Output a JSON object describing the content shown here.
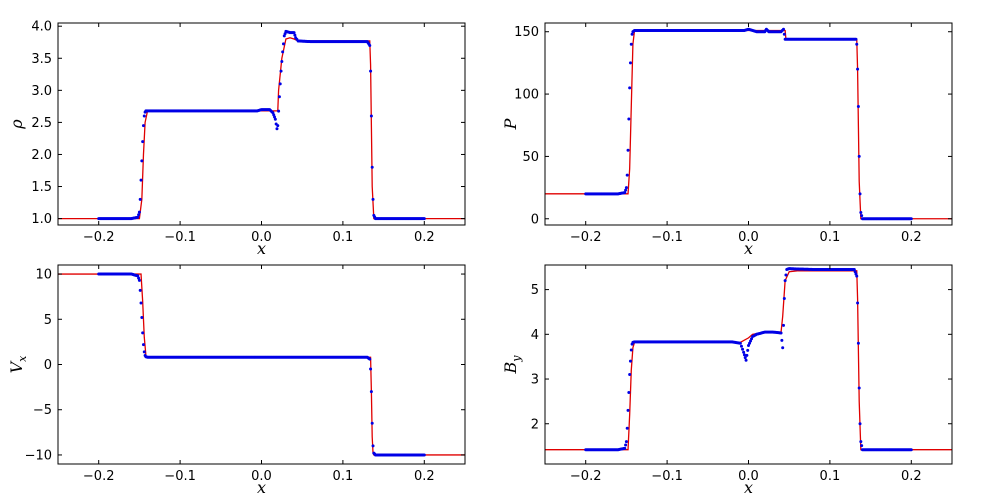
{
  "colors": {
    "analytic": "#e00000",
    "numerical": "#0000e6"
  },
  "chart_data": [
    {
      "type": "line",
      "ylabel_symbol": "ρ",
      "ylabel_sub": "",
      "xlabel": "x",
      "xlim": [
        -0.25,
        0.25
      ],
      "ylim": [
        0.9,
        4.05
      ],
      "xticks": [
        "−0.2",
        "−0.1",
        "0.0",
        "0.1",
        "0.2"
      ],
      "xtick_values": [
        -0.2,
        -0.1,
        0.0,
        0.1,
        0.2
      ],
      "yticks": [
        "1.0",
        "1.5",
        "2.0",
        "2.5",
        "3.0",
        "3.5",
        "4.0"
      ],
      "ytick_values": [
        1.0,
        1.5,
        2.0,
        2.5,
        3.0,
        3.5,
        4.0
      ],
      "series": [
        {
          "style": "line",
          "x": [
            -0.25,
            -0.15,
            -0.147,
            -0.145,
            -0.143,
            -0.14,
            0.0,
            0.02,
            0.021,
            0.025,
            0.03,
            0.035,
            0.04,
            0.045,
            0.05,
            0.1,
            0.133,
            0.134,
            0.136,
            0.138,
            0.25
          ],
          "y": [
            1.0,
            1.0,
            1.3,
            2.0,
            2.5,
            2.68,
            2.68,
            2.68,
            3.0,
            3.5,
            3.8,
            3.82,
            3.8,
            3.77,
            3.77,
            3.77,
            3.77,
            3.4,
            1.5,
            1.0,
            1.0
          ]
        },
        {
          "style": "points",
          "x": [
            -0.2,
            -0.18,
            -0.16,
            -0.152,
            -0.15,
            -0.149,
            -0.148,
            -0.147,
            -0.146,
            -0.145,
            -0.144,
            -0.143,
            -0.142,
            -0.14,
            -0.13,
            -0.12,
            -0.1,
            -0.08,
            -0.06,
            -0.04,
            -0.02,
            -0.005,
            0.0,
            0.005,
            0.01,
            0.014,
            0.017,
            0.019,
            0.02,
            0.022,
            0.024,
            0.026,
            0.028,
            0.03,
            0.035,
            0.04,
            0.042,
            0.045,
            0.06,
            0.08,
            0.1,
            0.12,
            0.13,
            0.133,
            0.134,
            0.135,
            0.136,
            0.137,
            0.138,
            0.14,
            0.16,
            0.18,
            0.2
          ],
          "y": [
            1.0,
            1.0,
            1.0,
            1.02,
            1.1,
            1.3,
            1.6,
            1.9,
            2.2,
            2.45,
            2.6,
            2.66,
            2.68,
            2.68,
            2.68,
            2.68,
            2.68,
            2.68,
            2.68,
            2.68,
            2.68,
            2.68,
            2.7,
            2.7,
            2.7,
            2.65,
            2.55,
            2.4,
            2.45,
            2.9,
            3.3,
            3.6,
            3.85,
            3.92,
            3.9,
            3.9,
            3.82,
            3.77,
            3.76,
            3.76,
            3.76,
            3.76,
            3.76,
            3.7,
            3.3,
            2.6,
            1.8,
            1.3,
            1.05,
            1.0,
            1.0,
            1.0,
            1.0
          ]
        }
      ]
    },
    {
      "type": "line",
      "ylabel_symbol": "P",
      "ylabel_sub": "",
      "xlabel": "x",
      "xlim": [
        -0.25,
        0.25
      ],
      "ylim": [
        -5,
        157
      ],
      "xticks": [
        "−0.2",
        "−0.1",
        "0.0",
        "0.1",
        "0.2"
      ],
      "xtick_values": [
        -0.2,
        -0.1,
        0.0,
        0.1,
        0.2
      ],
      "yticks": [
        "0",
        "50",
        "100",
        "150"
      ],
      "ytick_values": [
        0,
        50,
        100,
        150
      ],
      "series": [
        {
          "style": "line",
          "x": [
            -0.25,
            -0.148,
            -0.146,
            -0.144,
            -0.142,
            -0.14,
            0.0,
            0.03,
            0.04,
            0.045,
            0.046,
            0.1,
            0.133,
            0.134,
            0.136,
            0.138,
            0.25
          ],
          "y": [
            20,
            20,
            40,
            90,
            140,
            151,
            151,
            151,
            151,
            151,
            144,
            144,
            144,
            120,
            30,
            0,
            0
          ]
        },
        {
          "style": "points",
          "x": [
            -0.2,
            -0.18,
            -0.16,
            -0.152,
            -0.15,
            -0.149,
            -0.148,
            -0.147,
            -0.146,
            -0.145,
            -0.144,
            -0.143,
            -0.142,
            -0.14,
            -0.12,
            -0.1,
            -0.08,
            -0.06,
            -0.04,
            -0.02,
            -0.005,
            0.0,
            0.005,
            0.01,
            0.02,
            0.022,
            0.025,
            0.03,
            0.04,
            0.043,
            0.045,
            0.06,
            0.08,
            0.1,
            0.12,
            0.132,
            0.133,
            0.134,
            0.135,
            0.136,
            0.137,
            0.138,
            0.14,
            0.16,
            0.18,
            0.2
          ],
          "y": [
            20,
            20,
            20,
            21,
            25,
            35,
            55,
            80,
            105,
            125,
            140,
            148,
            150,
            151,
            151,
            151,
            151,
            151,
            151,
            151,
            151,
            152,
            151,
            150,
            150,
            152,
            150,
            150,
            150,
            152,
            144,
            144,
            144,
            144,
            144,
            144,
            140,
            120,
            90,
            50,
            20,
            5,
            0,
            0,
            0,
            0
          ]
        }
      ]
    },
    {
      "type": "line",
      "ylabel_symbol": "V",
      "ylabel_sub": "x",
      "xlabel": "x",
      "xlim": [
        -0.25,
        0.25
      ],
      "ylim": [
        -11,
        11
      ],
      "xticks": [
        "−0.2",
        "−0.1",
        "0.0",
        "0.1",
        "0.2"
      ],
      "xtick_values": [
        -0.2,
        -0.1,
        0.0,
        0.1,
        0.2
      ],
      "yticks": [
        "10",
        "5",
        "0",
        "−5",
        "−10"
      ],
      "ytick_values": [
        10,
        5,
        0,
        -5,
        -10
      ],
      "series": [
        {
          "style": "line",
          "x": [
            -0.25,
            -0.148,
            -0.146,
            -0.144,
            -0.142,
            -0.14,
            0.0,
            0.1,
            0.134,
            0.135,
            0.136,
            0.137,
            0.138,
            0.25
          ],
          "y": [
            10,
            10,
            7,
            3,
            1,
            0.8,
            0.8,
            0.8,
            0.8,
            -3,
            -8,
            -9.8,
            -10,
            -10
          ]
        },
        {
          "style": "points",
          "x": [
            -0.2,
            -0.18,
            -0.16,
            -0.152,
            -0.15,
            -0.149,
            -0.148,
            -0.147,
            -0.146,
            -0.145,
            -0.144,
            -0.143,
            -0.142,
            -0.14,
            -0.12,
            -0.1,
            -0.08,
            -0.06,
            -0.04,
            -0.02,
            0.0,
            0.02,
            0.04,
            0.06,
            0.08,
            0.1,
            0.12,
            0.13,
            0.133,
            0.134,
            0.135,
            0.136,
            0.137,
            0.138,
            0.14,
            0.16,
            0.18,
            0.2
          ],
          "y": [
            10,
            10,
            10,
            9.8,
            9.3,
            8.2,
            6.8,
            5.2,
            3.5,
            2.2,
            1.4,
            1.0,
            0.85,
            0.8,
            0.8,
            0.8,
            0.8,
            0.8,
            0.8,
            0.8,
            0.8,
            0.8,
            0.8,
            0.8,
            0.8,
            0.8,
            0.8,
            0.8,
            0.6,
            -0.5,
            -3,
            -6.5,
            -9,
            -9.8,
            -10,
            -10,
            -10,
            -10
          ]
        }
      ]
    },
    {
      "type": "line",
      "ylabel_symbol": "B",
      "ylabel_sub": "y",
      "xlabel": "x",
      "xlim": [
        -0.25,
        0.25
      ],
      "ylim": [
        1.1,
        5.55
      ],
      "xticks": [
        "−0.2",
        "−0.1",
        "0.0",
        "0.1",
        "0.2"
      ],
      "xtick_values": [
        -0.2,
        -0.1,
        0.0,
        0.1,
        0.2
      ],
      "yticks": [
        "2",
        "3",
        "4",
        "5"
      ],
      "ytick_values": [
        2,
        3,
        4,
        5
      ],
      "series": [
        {
          "style": "line",
          "x": [
            -0.25,
            -0.148,
            -0.146,
            -0.144,
            -0.142,
            -0.14,
            -0.01,
            0.0,
            0.005,
            0.02,
            0.04,
            0.042,
            0.045,
            0.05,
            0.06,
            0.1,
            0.133,
            0.134,
            0.136,
            0.138,
            0.25
          ],
          "y": [
            1.42,
            1.42,
            2.2,
            3.2,
            3.7,
            3.82,
            3.82,
            3.92,
            4.0,
            4.05,
            4.05,
            4.4,
            5.2,
            5.4,
            5.42,
            5.42,
            5.42,
            4.8,
            2.5,
            1.42,
            1.42
          ]
        },
        {
          "style": "points",
          "x": [
            -0.2,
            -0.18,
            -0.16,
            -0.152,
            -0.15,
            -0.149,
            -0.148,
            -0.147,
            -0.146,
            -0.145,
            -0.144,
            -0.143,
            -0.142,
            -0.14,
            -0.12,
            -0.1,
            -0.08,
            -0.06,
            -0.04,
            -0.02,
            -0.01,
            -0.006,
            -0.003,
            0.0,
            0.005,
            0.01,
            0.02,
            0.03,
            0.04,
            0.042,
            0.043,
            0.044,
            0.045,
            0.047,
            0.05,
            0.06,
            0.08,
            0.1,
            0.12,
            0.13,
            0.133,
            0.134,
            0.135,
            0.136,
            0.137,
            0.138,
            0.14,
            0.16,
            0.18,
            0.2
          ],
          "y": [
            1.42,
            1.42,
            1.42,
            1.45,
            1.6,
            1.9,
            2.3,
            2.7,
            3.1,
            3.4,
            3.65,
            3.78,
            3.82,
            3.83,
            3.83,
            3.83,
            3.83,
            3.83,
            3.83,
            3.83,
            3.8,
            3.6,
            3.42,
            3.75,
            3.95,
            4.0,
            4.05,
            4.05,
            4.03,
            3.7,
            4.2,
            4.8,
            5.2,
            5.45,
            5.47,
            5.46,
            5.45,
            5.45,
            5.45,
            5.45,
            5.3,
            4.7,
            3.8,
            2.8,
            2.0,
            1.6,
            1.42,
            1.42,
            1.42,
            1.42
          ]
        }
      ]
    }
  ]
}
